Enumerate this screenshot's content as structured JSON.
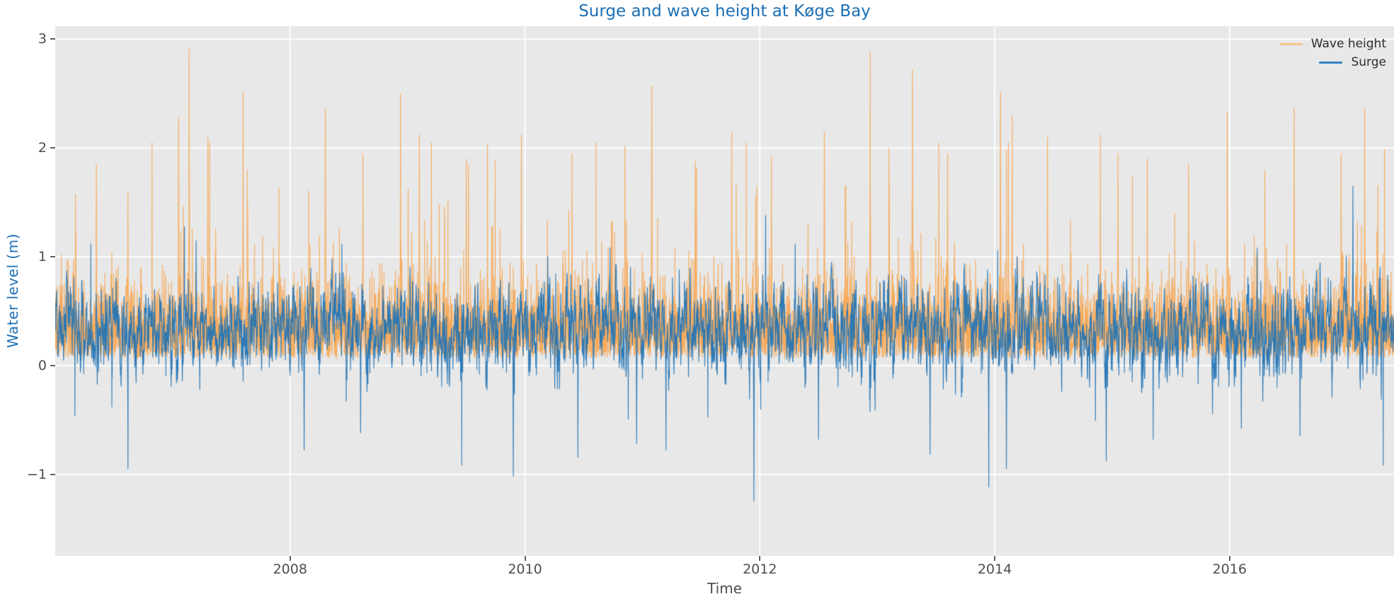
{
  "chart_data": {
    "type": "line",
    "title": "Surge and wave height at Køge Bay",
    "xlabel": "Time",
    "ylabel": "Water level (m)",
    "xlim": [
      2006.0,
      2017.4
    ],
    "ylim": [
      -1.75,
      3.12
    ],
    "x_ticks": [
      2008,
      2010,
      2012,
      2014,
      2016
    ],
    "x_tick_labels": [
      "2008",
      "2010",
      "2012",
      "2014",
      "2016"
    ],
    "y_ticks": [
      -1,
      0,
      1,
      2,
      3
    ],
    "y_tick_labels": [
      "−1",
      "0",
      "1",
      "2",
      "3"
    ],
    "grid": true,
    "legend_position": "upper right",
    "colors": {
      "title": "#1b6fb5",
      "ylabel": "#1b6fb5",
      "figure_background": "#ffffff",
      "plot_background": "#e8e8e8",
      "grid": "#ffffff",
      "tick": "#606060",
      "tick_label": "#4d4d4d",
      "legend_text": "#2e2e2e"
    },
    "series": [
      {
        "name": "Wave height",
        "color": "#f7a44d",
        "alpha": 0.9,
        "legend_color": "#f9c38a",
        "stats": {
          "min": 0.05,
          "max": 2.91,
          "typical_band": [
            0.1,
            1.2
          ]
        },
        "event_peaks": [
          [
            2006.35,
            1.85
          ],
          [
            2006.62,
            1.6
          ],
          [
            2007.05,
            2.28
          ],
          [
            2007.14,
            2.91
          ],
          [
            2007.3,
            2.1
          ],
          [
            2007.6,
            2.52
          ],
          [
            2008.3,
            2.36
          ],
          [
            2008.62,
            1.95
          ],
          [
            2008.94,
            2.5
          ],
          [
            2009.1,
            2.12
          ],
          [
            2009.5,
            1.9
          ],
          [
            2009.97,
            2.12
          ],
          [
            2010.4,
            1.95
          ],
          [
            2010.85,
            2.02
          ],
          [
            2011.08,
            2.57
          ],
          [
            2011.45,
            1.88
          ],
          [
            2011.76,
            2.15
          ],
          [
            2012.1,
            1.92
          ],
          [
            2012.55,
            2.15
          ],
          [
            2012.94,
            2.88
          ],
          [
            2013.1,
            2.0
          ],
          [
            2013.3,
            2.72
          ],
          [
            2013.6,
            1.95
          ],
          [
            2014.05,
            2.52
          ],
          [
            2014.15,
            2.3
          ],
          [
            2014.45,
            2.1
          ],
          [
            2014.9,
            2.12
          ],
          [
            2015.05,
            1.95
          ],
          [
            2015.3,
            1.9
          ],
          [
            2015.65,
            1.85
          ],
          [
            2015.98,
            2.33
          ],
          [
            2016.3,
            1.8
          ],
          [
            2016.55,
            2.37
          ],
          [
            2016.95,
            1.95
          ],
          [
            2017.15,
            2.36
          ]
        ]
      },
      {
        "name": "Surge",
        "color": "#2474b4",
        "alpha": 0.95,
        "legend_color": "#3381c1",
        "stats": {
          "mean": 0.35,
          "min": -1.25,
          "max": 1.65,
          "typical_band": [
            0.0,
            0.8
          ]
        },
        "event_extremes": [
          [
            2006.62,
            -0.95
          ],
          [
            2007.1,
            1.28
          ],
          [
            2007.2,
            1.15
          ],
          [
            2008.12,
            -0.78
          ],
          [
            2008.6,
            -0.62
          ],
          [
            2009.9,
            -1.02
          ],
          [
            2010.45,
            -0.85
          ],
          [
            2010.95,
            -0.72
          ],
          [
            2011.2,
            -0.78
          ],
          [
            2011.95,
            -1.25
          ],
          [
            2012.05,
            1.38
          ],
          [
            2012.5,
            -0.68
          ],
          [
            2013.45,
            -0.82
          ],
          [
            2013.95,
            -1.12
          ],
          [
            2014.1,
            -0.95
          ],
          [
            2014.95,
            -0.88
          ],
          [
            2015.35,
            -0.68
          ],
          [
            2016.1,
            -0.58
          ],
          [
            2016.6,
            -0.65
          ],
          [
            2017.05,
            1.65
          ]
        ]
      }
    ],
    "synthesis": {
      "seed": 1234567,
      "points_per_year": 620,
      "wave": {
        "floor": 0.07,
        "noise": 0.32,
        "burst_prob": 0.055,
        "burst_scale": 0.4,
        "cap": 2.05
      },
      "surge": {
        "mean": 0.34,
        "ar": 0.72,
        "noise": 0.14,
        "dip_prob": 0.01,
        "dip_scale": 0.3,
        "spike_prob": 0.008,
        "spike_scale": 0.22,
        "clip": [
          -0.92,
          1.12
        ]
      }
    }
  }
}
